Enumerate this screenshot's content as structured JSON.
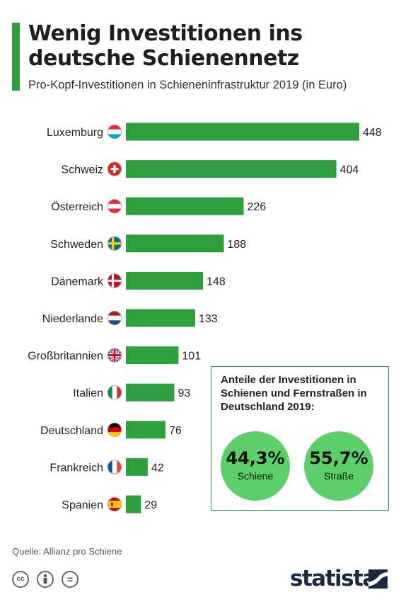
{
  "header": {
    "title": "Wenig Investitionen ins deutsche Schienennetz",
    "subtitle": "Pro-Kopf-Investitionen in Schieneninfrastruktur 2019 (in Euro)"
  },
  "colors": {
    "accent": "#2e9e3f",
    "bar": "#2e9e3f",
    "circle": "#5ccf6a",
    "brand": "#1a2a45"
  },
  "chart_data": {
    "type": "bar",
    "orientation": "horizontal",
    "title": "Wenig Investitionen ins deutsche Schienennetz",
    "subtitle": "Pro-Kopf-Investitionen in Schieneninfrastruktur 2019 (in Euro)",
    "categories": [
      "Luxemburg",
      "Schweiz",
      "Österreich",
      "Schweden",
      "Dänemark",
      "Niederlande",
      "Großbritannien",
      "Italien",
      "Deutschland",
      "Frankreich",
      "Spanien"
    ],
    "flags": [
      "flag-lu-icon",
      "flag-ch-icon",
      "flag-at-icon",
      "flag-se-icon",
      "flag-dk-icon",
      "flag-nl-icon",
      "flag-gb-icon",
      "flag-it-icon",
      "flag-de-icon",
      "flag-fr-icon",
      "flag-es-icon"
    ],
    "values": [
      448,
      404,
      226,
      188,
      148,
      133,
      101,
      93,
      76,
      42,
      29
    ],
    "xlim": [
      0,
      448
    ],
    "grid": false,
    "legend": "none"
  },
  "inset": {
    "title": "Anteile der Investitionen in Schienen und Fernstraßen in Deutschland 2019:",
    "items": [
      {
        "value": "44,3%",
        "label": "Schiene"
      },
      {
        "value": "55,7%",
        "label": "Straße"
      }
    ]
  },
  "footer": {
    "source": "Quelle: Allianz pro Schiene",
    "license_icons": [
      "cc-icon",
      "by-icon",
      "nd-icon"
    ],
    "license_marks": [
      "cc",
      "="
    ],
    "brand": "statista"
  }
}
